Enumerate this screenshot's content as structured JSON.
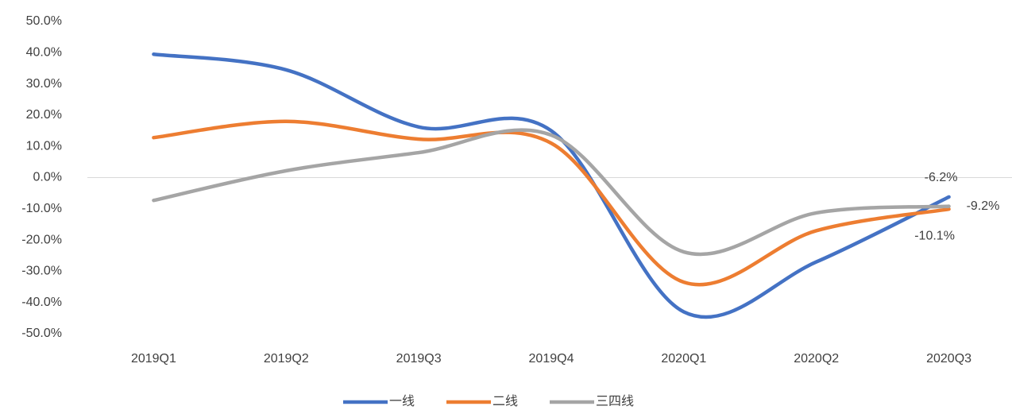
{
  "chart_data": {
    "type": "line",
    "categories": [
      "2019Q1",
      "2019Q2",
      "2019Q3",
      "2019Q4",
      "2020Q1",
      "2020Q2",
      "2020Q3"
    ],
    "series": [
      {
        "name": "一线",
        "color": "#4472c4",
        "values": [
          39.5,
          34.5,
          16.2,
          15,
          -43,
          -27,
          -6.2
        ],
        "value_labels": [
          null,
          null,
          null,
          null,
          null,
          null,
          "-6.2%"
        ]
      },
      {
        "name": "二线",
        "color": "#ed7d31",
        "values": [
          12.8,
          18,
          12.3,
          11,
          -33.5,
          -17,
          -10.1
        ],
        "value_labels": [
          null,
          null,
          null,
          null,
          null,
          null,
          "-10.1%"
        ]
      },
      {
        "name": "三四线",
        "color": "#a5a5a5",
        "values": [
          -7.3,
          2.2,
          8,
          13.6,
          -23.8,
          -11.3,
          -9.2
        ],
        "value_labels": [
          null,
          null,
          null,
          null,
          null,
          null,
          "-9.2%"
        ]
      }
    ],
    "ylim": [
      -50,
      50
    ],
    "yticks": [
      {
        "value": -50,
        "label": "-50.0%"
      },
      {
        "value": -40,
        "label": "-40.0%"
      },
      {
        "value": -30,
        "label": "-30.0%"
      },
      {
        "value": -20,
        "label": "-20.0%"
      },
      {
        "value": -10,
        "label": "-10.0%"
      },
      {
        "value": 0,
        "label": "0.0%"
      },
      {
        "value": 10,
        "label": "10.0%"
      },
      {
        "value": 20,
        "label": "20.0%"
      },
      {
        "value": 30,
        "label": "30.0%"
      },
      {
        "value": 40,
        "label": "40.0%"
      },
      {
        "value": 50,
        "label": "50.0%"
      }
    ],
    "grid": false,
    "smooth": true,
    "legend": "bottom"
  }
}
